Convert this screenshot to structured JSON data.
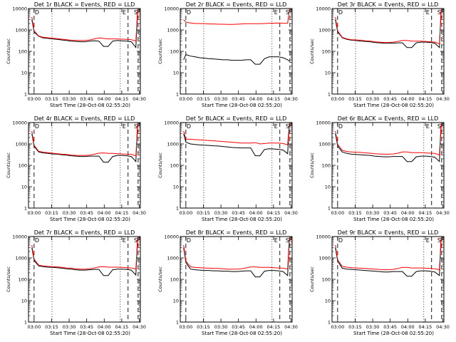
{
  "figure": {
    "xlabel": "Start Time (28-Oct-08 02:55:20)",
    "ylabel": "Counts/sec",
    "legend_text": "BLACK = Events, RED = LLD",
    "event_color": "#000000",
    "lld_color": "#ff0000"
  },
  "chart_data": [
    {
      "type": "line",
      "title": "Det 1r BLACK = Events, RED = LLD",
      "detector": "1r",
      "xlim": [
        0,
        100
      ],
      "ylim_log": [
        1,
        10000
      ],
      "xticks": [
        "03:00",
        "03:15",
        "03:30",
        "03:45",
        "04:00",
        "04:15",
        "04:30"
      ],
      "yticks": [
        "1",
        "10",
        "100",
        "1000",
        "10000"
      ],
      "dotted_x": [
        21,
        82
      ],
      "dashed_x": [
        5,
        89,
        98
      ],
      "annotations": [
        "D",
        "E",
        "S"
      ],
      "series": [
        {
          "name": "Events",
          "values": [
            3000,
            800,
            500,
            420,
            400,
            380,
            360,
            340,
            320,
            300,
            290,
            280,
            280,
            300,
            310,
            300,
            170,
            170,
            300,
            320,
            310,
            300,
            280,
            150,
            8000
          ]
        },
        {
          "name": "LLD",
          "values": [
            4000,
            900,
            520,
            450,
            430,
            410,
            390,
            370,
            350,
            330,
            320,
            320,
            320,
            340,
            380,
            420,
            400,
            380,
            380,
            380,
            370,
            360,
            350,
            300,
            9000
          ]
        }
      ]
    },
    {
      "type": "line",
      "title": "Det 2r BLACK = Events, RED = LLD",
      "detector": "2r",
      "xlim": [
        0,
        100
      ],
      "ylim_log": [
        1,
        10000
      ],
      "xticks": [
        "03:00",
        "03:15",
        "03:30",
        "03:45",
        "04:00",
        "04:15",
        "04:30"
      ],
      "yticks": [
        "1",
        "10",
        "100",
        "1000",
        "10000"
      ],
      "dotted_x": [
        21,
        82
      ],
      "dashed_x": [
        5,
        89,
        98
      ],
      "annotations": [
        "D",
        "E",
        "S"
      ],
      "series": [
        {
          "name": "Events",
          "values": [
            40,
            70,
            60,
            55,
            50,
            48,
            45,
            44,
            42,
            40,
            40,
            38,
            38,
            38,
            40,
            40,
            25,
            25,
            45,
            55,
            55,
            55,
            50,
            40,
            35
          ]
        },
        {
          "name": "LLD",
          "values": [
            3000,
            2300,
            2100,
            2000,
            2000,
            1950,
            1900,
            1900,
            1850,
            1850,
            1800,
            1800,
            1850,
            1900,
            1950,
            1950,
            1950,
            1950,
            2000,
            2050,
            2050,
            2100,
            2050,
            2050,
            9000
          ]
        }
      ]
    },
    {
      "type": "line",
      "title": "Det 3r BLACK = Events, RED = LLD",
      "detector": "3r",
      "xlim": [
        0,
        100
      ],
      "ylim_log": [
        1,
        10000
      ],
      "xticks": [
        "03:00",
        "03:15",
        "03:30",
        "03:45",
        "04:00",
        "04:15",
        "04:30"
      ],
      "yticks": [
        "1",
        "10",
        "100",
        "1000",
        "10000"
      ],
      "dotted_x": [
        21,
        82
      ],
      "dashed_x": [
        5,
        89,
        98
      ],
      "annotations": [
        "D",
        "E",
        "S"
      ],
      "series": [
        {
          "name": "Events",
          "values": [
            3000,
            800,
            430,
            360,
            330,
            320,
            300,
            290,
            280,
            260,
            250,
            240,
            240,
            240,
            250,
            250,
            150,
            150,
            250,
            270,
            270,
            260,
            240,
            150,
            8000
          ]
        },
        {
          "name": "LLD",
          "values": [
            4000,
            900,
            450,
            380,
            350,
            340,
            330,
            310,
            300,
            280,
            270,
            260,
            260,
            270,
            290,
            320,
            320,
            300,
            300,
            300,
            290,
            280,
            270,
            220,
            9000
          ]
        }
      ]
    },
    {
      "type": "line",
      "title": "Det 4r BLACK = Events, RED = LLD",
      "detector": "4r",
      "xlim": [
        0,
        100
      ],
      "ylim_log": [
        1,
        10000
      ],
      "xticks": [
        "03:00",
        "03:15",
        "03:30",
        "03:45",
        "04:00",
        "04:15",
        "04:30"
      ],
      "yticks": [
        "1",
        "10",
        "100",
        "1000",
        "10000"
      ],
      "dotted_x": [
        21,
        82
      ],
      "dashed_x": [
        5,
        89,
        98
      ],
      "annotations": [
        "D",
        "E",
        "S"
      ],
      "series": [
        {
          "name": "Events",
          "values": [
            3000,
            750,
            420,
            380,
            360,
            340,
            330,
            310,
            300,
            280,
            270,
            260,
            260,
            270,
            270,
            270,
            140,
            140,
            260,
            290,
            290,
            280,
            260,
            150,
            8000
          ]
        },
        {
          "name": "LLD",
          "values": [
            4000,
            850,
            450,
            410,
            390,
            370,
            350,
            330,
            320,
            300,
            290,
            290,
            290,
            300,
            330,
            370,
            380,
            360,
            360,
            350,
            340,
            330,
            320,
            280,
            9000
          ]
        }
      ]
    },
    {
      "type": "line",
      "title": "Det 5r BLACK = Events, RED = LLD",
      "detector": "5r",
      "xlim": [
        0,
        100
      ],
      "ylim_log": [
        1,
        10000
      ],
      "xticks": [
        "03:00",
        "03:15",
        "03:30",
        "03:45",
        "04:00",
        "04:15",
        "04:30"
      ],
      "yticks": [
        "1",
        "10",
        "100",
        "1000",
        "10000"
      ],
      "dotted_x": [
        21,
        82
      ],
      "dashed_x": [
        5,
        89,
        98
      ],
      "annotations": [
        "D",
        "E",
        "S"
      ],
      "series": [
        {
          "name": "Events",
          "values": [
            3000,
            1200,
            1000,
            950,
            900,
            880,
            850,
            820,
            800,
            760,
            720,
            680,
            660,
            650,
            650,
            650,
            280,
            280,
            550,
            600,
            580,
            560,
            520,
            350,
            8000
          ]
        },
        {
          "name": "LLD",
          "values": [
            4000,
            1700,
            1650,
            1600,
            1550,
            1500,
            1450,
            1400,
            1350,
            1300,
            1250,
            1200,
            1150,
            1100,
            1100,
            1100,
            1150,
            1000,
            1050,
            1100,
            1100,
            1100,
            1050,
            900,
            9000
          ]
        }
      ]
    },
    {
      "type": "line",
      "title": "Det 6r BLACK = Events, RED = LLD",
      "detector": "6r",
      "xlim": [
        0,
        100
      ],
      "ylim_log": [
        1,
        10000
      ],
      "xticks": [
        "03:00",
        "03:15",
        "03:30",
        "03:45",
        "04:00",
        "04:15",
        "04:30"
      ],
      "yticks": [
        "1",
        "10",
        "100",
        "1000",
        "10000"
      ],
      "dotted_x": [
        21,
        82
      ],
      "dashed_x": [
        5,
        89,
        98
      ],
      "annotations": [
        "D",
        "E",
        "S"
      ],
      "series": [
        {
          "name": "Events",
          "values": [
            3000,
            800,
            420,
            360,
            330,
            320,
            310,
            300,
            290,
            270,
            260,
            250,
            250,
            260,
            260,
            260,
            150,
            150,
            250,
            270,
            270,
            260,
            240,
            150,
            8000
          ]
        },
        {
          "name": "LLD",
          "values": [
            4000,
            950,
            500,
            440,
            420,
            410,
            400,
            380,
            370,
            350,
            340,
            330,
            330,
            340,
            370,
            420,
            420,
            390,
            390,
            390,
            380,
            370,
            360,
            300,
            9000
          ]
        }
      ]
    },
    {
      "type": "line",
      "title": "Det 7r BLACK = Events, RED = LLD",
      "detector": "7r",
      "xlim": [
        0,
        100
      ],
      "ylim_log": [
        1,
        10000
      ],
      "xticks": [
        "03:00",
        "03:15",
        "03:30",
        "03:45",
        "04:00",
        "04:15",
        "04:30"
      ],
      "yticks": [
        "1",
        "10",
        "100",
        "1000",
        "10000"
      ],
      "dotted_x": [
        21,
        82
      ],
      "dashed_x": [
        5,
        89,
        98
      ],
      "annotations": [
        "D",
        "E",
        "S"
      ],
      "series": [
        {
          "name": "Events",
          "values": [
            3000,
            750,
            420,
            390,
            370,
            360,
            350,
            330,
            310,
            300,
            280,
            270,
            270,
            280,
            290,
            290,
            150,
            150,
            280,
            300,
            300,
            290,
            270,
            160,
            8000
          ]
        },
        {
          "name": "LLD",
          "values": [
            4000,
            850,
            460,
            420,
            400,
            390,
            380,
            360,
            340,
            330,
            310,
            300,
            300,
            310,
            340,
            380,
            390,
            370,
            370,
            370,
            360,
            350,
            340,
            300,
            9000
          ]
        }
      ]
    },
    {
      "type": "line",
      "title": "Det 8r BLACK = Events, RED = LLD",
      "detector": "8r",
      "xlim": [
        0,
        100
      ],
      "ylim_log": [
        1,
        10000
      ],
      "xticks": [
        "03:00",
        "03:15",
        "03:30",
        "03:45",
        "04:00",
        "04:15",
        "04:30"
      ],
      "yticks": [
        "1",
        "10",
        "100",
        "1000",
        "10000"
      ],
      "dotted_x": [
        21,
        82
      ],
      "dashed_x": [
        5,
        89,
        98
      ],
      "annotations": [
        "D",
        "E",
        "S"
      ],
      "series": [
        {
          "name": "Events",
          "values": [
            3000,
            600,
            300,
            280,
            270,
            260,
            260,
            250,
            250,
            240,
            240,
            230,
            230,
            240,
            250,
            250,
            130,
            130,
            240,
            260,
            260,
            250,
            230,
            150,
            8000
          ]
        },
        {
          "name": "LLD",
          "values": [
            4000,
            700,
            380,
            360,
            350,
            340,
            330,
            320,
            320,
            310,
            300,
            300,
            300,
            310,
            340,
            380,
            380,
            360,
            360,
            360,
            350,
            340,
            330,
            300,
            9000
          ]
        }
      ]
    },
    {
      "type": "line",
      "title": "Det 9r BLACK = Events, RED = LLD",
      "detector": "9r",
      "xlim": [
        0,
        100
      ],
      "ylim_log": [
        1,
        10000
      ],
      "xticks": [
        "03:00",
        "03:15",
        "03:30",
        "03:45",
        "04:00",
        "04:15",
        "04:30"
      ],
      "yticks": [
        "1",
        "10",
        "100",
        "1000",
        "10000"
      ],
      "dotted_x": [
        21,
        82
      ],
      "dashed_x": [
        5,
        89,
        98
      ],
      "annotations": [
        "D",
        "E",
        "S"
      ],
      "series": [
        {
          "name": "Events",
          "values": [
            3000,
            700,
            330,
            300,
            290,
            280,
            270,
            260,
            250,
            240,
            230,
            220,
            220,
            230,
            230,
            230,
            140,
            140,
            230,
            250,
            250,
            240,
            220,
            150,
            8000
          ]
        },
        {
          "name": "LLD",
          "values": [
            4000,
            800,
            400,
            370,
            350,
            340,
            330,
            320,
            310,
            300,
            290,
            280,
            280,
            290,
            320,
            360,
            360,
            340,
            340,
            340,
            330,
            320,
            310,
            280,
            9000
          ]
        }
      ]
    }
  ]
}
